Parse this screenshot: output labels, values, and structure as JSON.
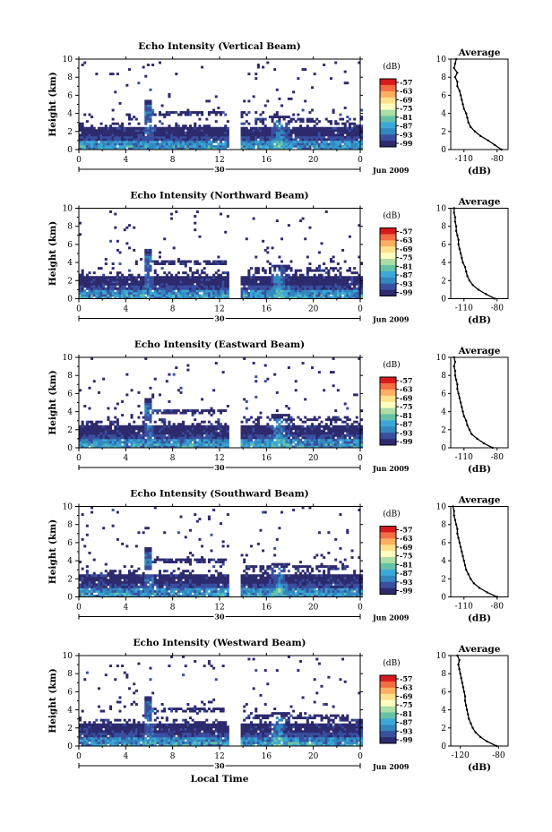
{
  "figure": {
    "local_time_label": "Local Time",
    "colorbar_unit": "(dB)",
    "avg_title": "Average",
    "avg_xlabel": "(dB)",
    "day_label": "30",
    "date_label": "Jun 2009",
    "ylabel": "Height (km)"
  },
  "chart_data": [
    {
      "type": "heatmap",
      "title": "Echo Intensity (Vertical Beam)",
      "ylabel": "Height (km)",
      "xticks": [
        "0",
        "4",
        "8",
        "12",
        "16",
        "20",
        "0"
      ],
      "yticks": [
        "0",
        "2",
        "4",
        "6",
        "8",
        "10"
      ],
      "xlim": [
        0,
        24
      ],
      "ylim": [
        0,
        10
      ],
      "colorbar_ticks": [
        "-57",
        "-63",
        "-69",
        "-75",
        "-81",
        "-87",
        "-93",
        "-99"
      ],
      "colorbar_colors": [
        "#d7191c",
        "#f46d43",
        "#fdae61",
        "#fee08b",
        "#ffffbf",
        "#abdda4",
        "#66c2a5",
        "#3ba8d8",
        "#3288bd",
        "#3a4fa0",
        "#2d2a6e"
      ],
      "gap_hours": [
        12.6,
        13.6
      ],
      "average_profile": {
        "xticks": [
          "-110",
          "-80"
        ],
        "xlim": [
          -122,
          -70
        ],
        "heights": [
          0,
          0.5,
          1,
          1.5,
          2,
          2.5,
          3,
          3.5,
          4,
          4.5,
          5,
          5.5,
          6,
          6.5,
          7,
          7.5,
          8,
          8.5,
          9,
          9.5,
          10
        ],
        "values": [
          -76,
          -82,
          -88,
          -95,
          -100,
          -104,
          -106,
          -107,
          -108,
          -110,
          -111,
          -112,
          -113,
          -114,
          -116,
          -116,
          -118,
          -116,
          -119,
          -118,
          -117
        ]
      }
    },
    {
      "type": "heatmap",
      "title": "Echo Intensity (Northward Beam)",
      "ylabel": "Height (km)",
      "xticks": [
        "0",
        "4",
        "8",
        "12",
        "16",
        "20",
        "0"
      ],
      "yticks": [
        "0",
        "2",
        "4",
        "6",
        "8",
        "10"
      ],
      "xlim": [
        0,
        24
      ],
      "ylim": [
        0,
        10
      ],
      "colorbar_ticks": [
        "-57",
        "-63",
        "-69",
        "-75",
        "-81",
        "-87",
        "-93",
        "-99"
      ],
      "colorbar_colors": [
        "#d7191c",
        "#f46d43",
        "#fdae61",
        "#fee08b",
        "#ffffbf",
        "#abdda4",
        "#66c2a5",
        "#3ba8d8",
        "#3288bd",
        "#3a4fa0",
        "#2d2a6e"
      ],
      "gap_hours": [
        12.6,
        13.6
      ],
      "average_profile": {
        "xticks": [
          "-110",
          "-80"
        ],
        "xlim": [
          -122,
          -70
        ],
        "heights": [
          0,
          0.5,
          1,
          1.5,
          2,
          2.5,
          3,
          3.5,
          4,
          4.5,
          5,
          5.5,
          6,
          6.5,
          7,
          7.5,
          8,
          8.5,
          9,
          9.5,
          10
        ],
        "values": [
          -82,
          -90,
          -97,
          -102,
          -105,
          -107,
          -108,
          -109,
          -111,
          -112,
          -113,
          -114,
          -115,
          -115,
          -116,
          -117,
          -117,
          -118,
          -118,
          -119,
          -119
        ]
      }
    },
    {
      "type": "heatmap",
      "title": "Echo Intensity (Eastward Beam)",
      "ylabel": "Height (km)",
      "xticks": [
        "0",
        "4",
        "8",
        "12",
        "16",
        "20",
        "0"
      ],
      "yticks": [
        "0",
        "2",
        "4",
        "6",
        "8",
        "10"
      ],
      "xlim": [
        0,
        24
      ],
      "ylim": [
        0,
        10
      ],
      "colorbar_ticks": [
        "-57",
        "-63",
        "-69",
        "-75",
        "-81",
        "-87",
        "-93",
        "-99"
      ],
      "colorbar_colors": [
        "#d7191c",
        "#f46d43",
        "#fdae61",
        "#fee08b",
        "#ffffbf",
        "#abdda4",
        "#66c2a5",
        "#3ba8d8",
        "#3288bd",
        "#3a4fa0",
        "#2d2a6e"
      ],
      "gap_hours": [
        12.6,
        13.6
      ],
      "average_profile": {
        "xticks": [
          "-110",
          "-80"
        ],
        "xlim": [
          -122,
          -70
        ],
        "heights": [
          0,
          0.5,
          1,
          1.5,
          2,
          2.5,
          3,
          3.5,
          4,
          4.5,
          5,
          5.5,
          6,
          6.5,
          7,
          7.5,
          8,
          8.5,
          9,
          9.5,
          10
        ],
        "values": [
          -84,
          -92,
          -98,
          -103,
          -105,
          -107,
          -108,
          -110,
          -111,
          -112,
          -113,
          -114,
          -115,
          -116,
          -116,
          -117,
          -118,
          -118,
          -119,
          -118,
          -119
        ]
      }
    },
    {
      "type": "heatmap",
      "title": "Echo Intensity (Southward Beam)",
      "ylabel": "Height (km)",
      "xticks": [
        "0",
        "4",
        "8",
        "12",
        "16",
        "20",
        "0"
      ],
      "yticks": [
        "0",
        "2",
        "4",
        "6",
        "8",
        "10"
      ],
      "xlim": [
        0,
        24
      ],
      "ylim": [
        0,
        10
      ],
      "colorbar_ticks": [
        "-57",
        "-63",
        "-69",
        "-75",
        "-81",
        "-87",
        "-93",
        "-99"
      ],
      "colorbar_colors": [
        "#d7191c",
        "#f46d43",
        "#fdae61",
        "#fee08b",
        "#ffffbf",
        "#abdda4",
        "#66c2a5",
        "#3ba8d8",
        "#3288bd",
        "#3a4fa0",
        "#2d2a6e"
      ],
      "gap_hours": [
        12.6,
        13.6
      ],
      "average_profile": {
        "xticks": [
          "-110",
          "-80"
        ],
        "xlim": [
          -122,
          -70
        ],
        "heights": [
          0,
          0.5,
          1,
          1.5,
          2,
          2.5,
          3,
          3.5,
          4,
          4.5,
          5,
          5.5,
          6,
          6.5,
          7,
          7.5,
          8,
          8.5,
          9,
          9.5,
          10
        ],
        "values": [
          -80,
          -89,
          -96,
          -101,
          -104,
          -106,
          -108,
          -109,
          -110,
          -111,
          -112,
          -113,
          -114,
          -115,
          -116,
          -116,
          -117,
          -118,
          -119,
          -119,
          -120
        ]
      }
    },
    {
      "type": "heatmap",
      "title": "Echo Intensity (Westward Beam)",
      "ylabel": "Height (km)",
      "xticks": [
        "0",
        "4",
        "8",
        "12",
        "16",
        "20",
        "0"
      ],
      "yticks": [
        "0",
        "2",
        "4",
        "6",
        "8",
        "10"
      ],
      "xlim": [
        0,
        24
      ],
      "ylim": [
        0,
        10
      ],
      "colorbar_ticks": [
        "-57",
        "-63",
        "-69",
        "-75",
        "-81",
        "-87",
        "-93",
        "-99"
      ],
      "colorbar_colors": [
        "#d7191c",
        "#f46d43",
        "#fdae61",
        "#fee08b",
        "#ffffbf",
        "#abdda4",
        "#66c2a5",
        "#3ba8d8",
        "#3288bd",
        "#3a4fa0",
        "#2d2a6e"
      ],
      "gap_hours": [
        12.6,
        13.6
      ],
      "average_profile": {
        "xticks": [
          "-120",
          "-80"
        ],
        "xlim": [
          -130,
          -70
        ],
        "heights": [
          0,
          0.5,
          1,
          1.5,
          2,
          2.5,
          3,
          3.5,
          4,
          4.5,
          5,
          5.5,
          6,
          6.5,
          7,
          7.5,
          8,
          8.5,
          9,
          9.5,
          10
        ],
        "values": [
          -82,
          -92,
          -99,
          -104,
          -107,
          -109,
          -111,
          -112,
          -113,
          -114,
          -115,
          -115,
          -116,
          -117,
          -118,
          -119,
          -120,
          -121,
          -122,
          -121,
          -123
        ]
      }
    }
  ]
}
